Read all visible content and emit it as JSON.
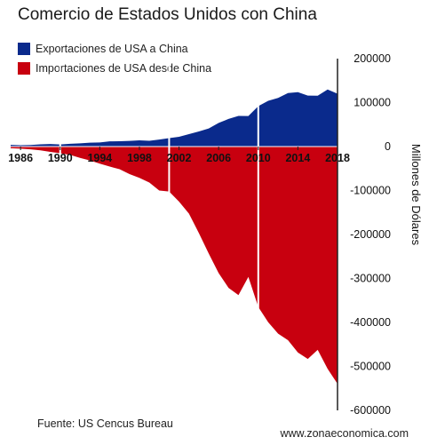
{
  "title": "Comercio de Estados Unidos con China",
  "source": "Fuente: US Cencus Bureau",
  "credit": "www.zonaeconomica.com",
  "chart_data": {
    "type": "area",
    "title": "Comercio de Estados Unidos con China",
    "ylabel": "Millones de Dólares",
    "xlabel": "",
    "x": [
      1985,
      1986,
      1987,
      1988,
      1989,
      1990,
      1991,
      1992,
      1993,
      1994,
      1995,
      1996,
      1997,
      1998,
      1999,
      2000,
      2001,
      2002,
      2003,
      2004,
      2005,
      2006,
      2007,
      2008,
      2009,
      2010,
      2011,
      2012,
      2013,
      2014,
      2015,
      2016,
      2017,
      2018
    ],
    "series": [
      {
        "name": "Exportaciones de USA a China",
        "color": "#0a2a8c",
        "values": [
          3900,
          3100,
          3500,
          5000,
          5800,
          4800,
          6300,
          7400,
          8800,
          9300,
          11800,
          12000,
          12900,
          14200,
          13100,
          16000,
          19200,
          22100,
          28400,
          34400,
          41200,
          53700,
          62900,
          69700,
          69500,
          91900,
          104100,
          110500,
          121700,
          123700,
          115900,
          115600,
          129900,
          120300
        ]
      },
      {
        "name": "Importaciones de USA desde China",
        "color": "#c8000f",
        "values": [
          -3900,
          -4800,
          -6300,
          -8500,
          -12000,
          -15200,
          -19000,
          -25700,
          -31500,
          -38800,
          -45500,
          -51500,
          -62600,
          -71200,
          -81800,
          -100000,
          -102300,
          -125200,
          -152400,
          -196700,
          -243500,
          -287800,
          -321400,
          -337800,
          -296400,
          -364900,
          -399400,
          -425600,
          -440400,
          -468500,
          -483200,
          -462400,
          -505500,
          -539700
        ]
      }
    ],
    "x_ticks": [
      "1986",
      "1990",
      "1994",
      "1998",
      "2002",
      "2006",
      "2010",
      "2014",
      "2018"
    ],
    "y_ticks": [
      "200000",
      "100000",
      "0",
      "-100000",
      "-200000",
      "-300000",
      "-400000",
      "-500000",
      "-600000"
    ],
    "ylim": [
      -600000,
      200000
    ],
    "xlim": [
      1985,
      2018
    ],
    "vertical_markers": [
      1990,
      2001,
      2010
    ],
    "legend": "top-left",
    "grid": false
  }
}
